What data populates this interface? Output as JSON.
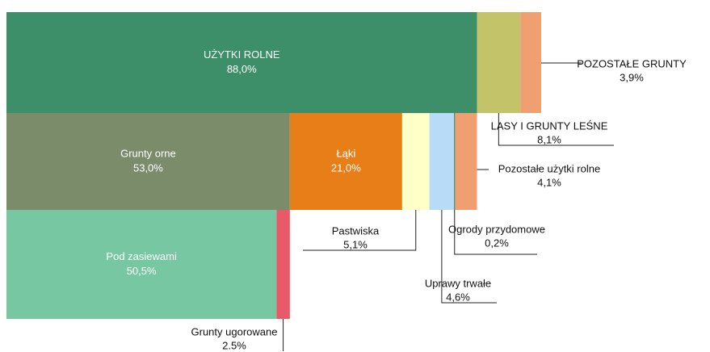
{
  "chart_data": {
    "type": "marimekko",
    "rows": [
      {
        "segments": [
          {
            "name": "UŻYTKI ROLNE",
            "value": 88.0,
            "value_label": "88,0%",
            "color": "#3d8f6a"
          },
          {
            "name": "LASY I GRUNTY LEŚNE",
            "value": 8.1,
            "value_label": "8,1%",
            "color": "#c3c46a"
          },
          {
            "name": "POZOSTAŁE GRUNTY",
            "value": 3.9,
            "value_label": "3,9%",
            "color": "#f0a070"
          }
        ]
      },
      {
        "segments": [
          {
            "name": "Grunty orne",
            "value": 53.0,
            "value_label": "53,0%",
            "color": "#7a8c6a"
          },
          {
            "name": "Łąki",
            "value": 21.0,
            "value_label": "21,0%",
            "color": "#e87e17"
          },
          {
            "name": "Pastwiska",
            "value": 5.1,
            "value_label": "5,1%",
            "color": "#ffffc8"
          },
          {
            "name": "Uprawy trwałe",
            "value": 4.6,
            "value_label": "4,6%",
            "color": "#b8dcf8"
          },
          {
            "name": "Ogrody przydomowe",
            "value": 0.2,
            "value_label": "0,2%",
            "color": "#3d8f6a"
          },
          {
            "name": "Pozostałe użytki rolne",
            "value": 4.1,
            "value_label": "4,1%",
            "color": "#f0a070"
          }
        ]
      },
      {
        "segments": [
          {
            "name": "Pod zasiewami",
            "value": 50.5,
            "value_label": "50,5%",
            "color": "#78c7a3"
          },
          {
            "name": "Grunty ugorowane",
            "value": 2.5,
            "value_label": "2.5%",
            "color": "#e85a6a"
          }
        ]
      }
    ]
  }
}
